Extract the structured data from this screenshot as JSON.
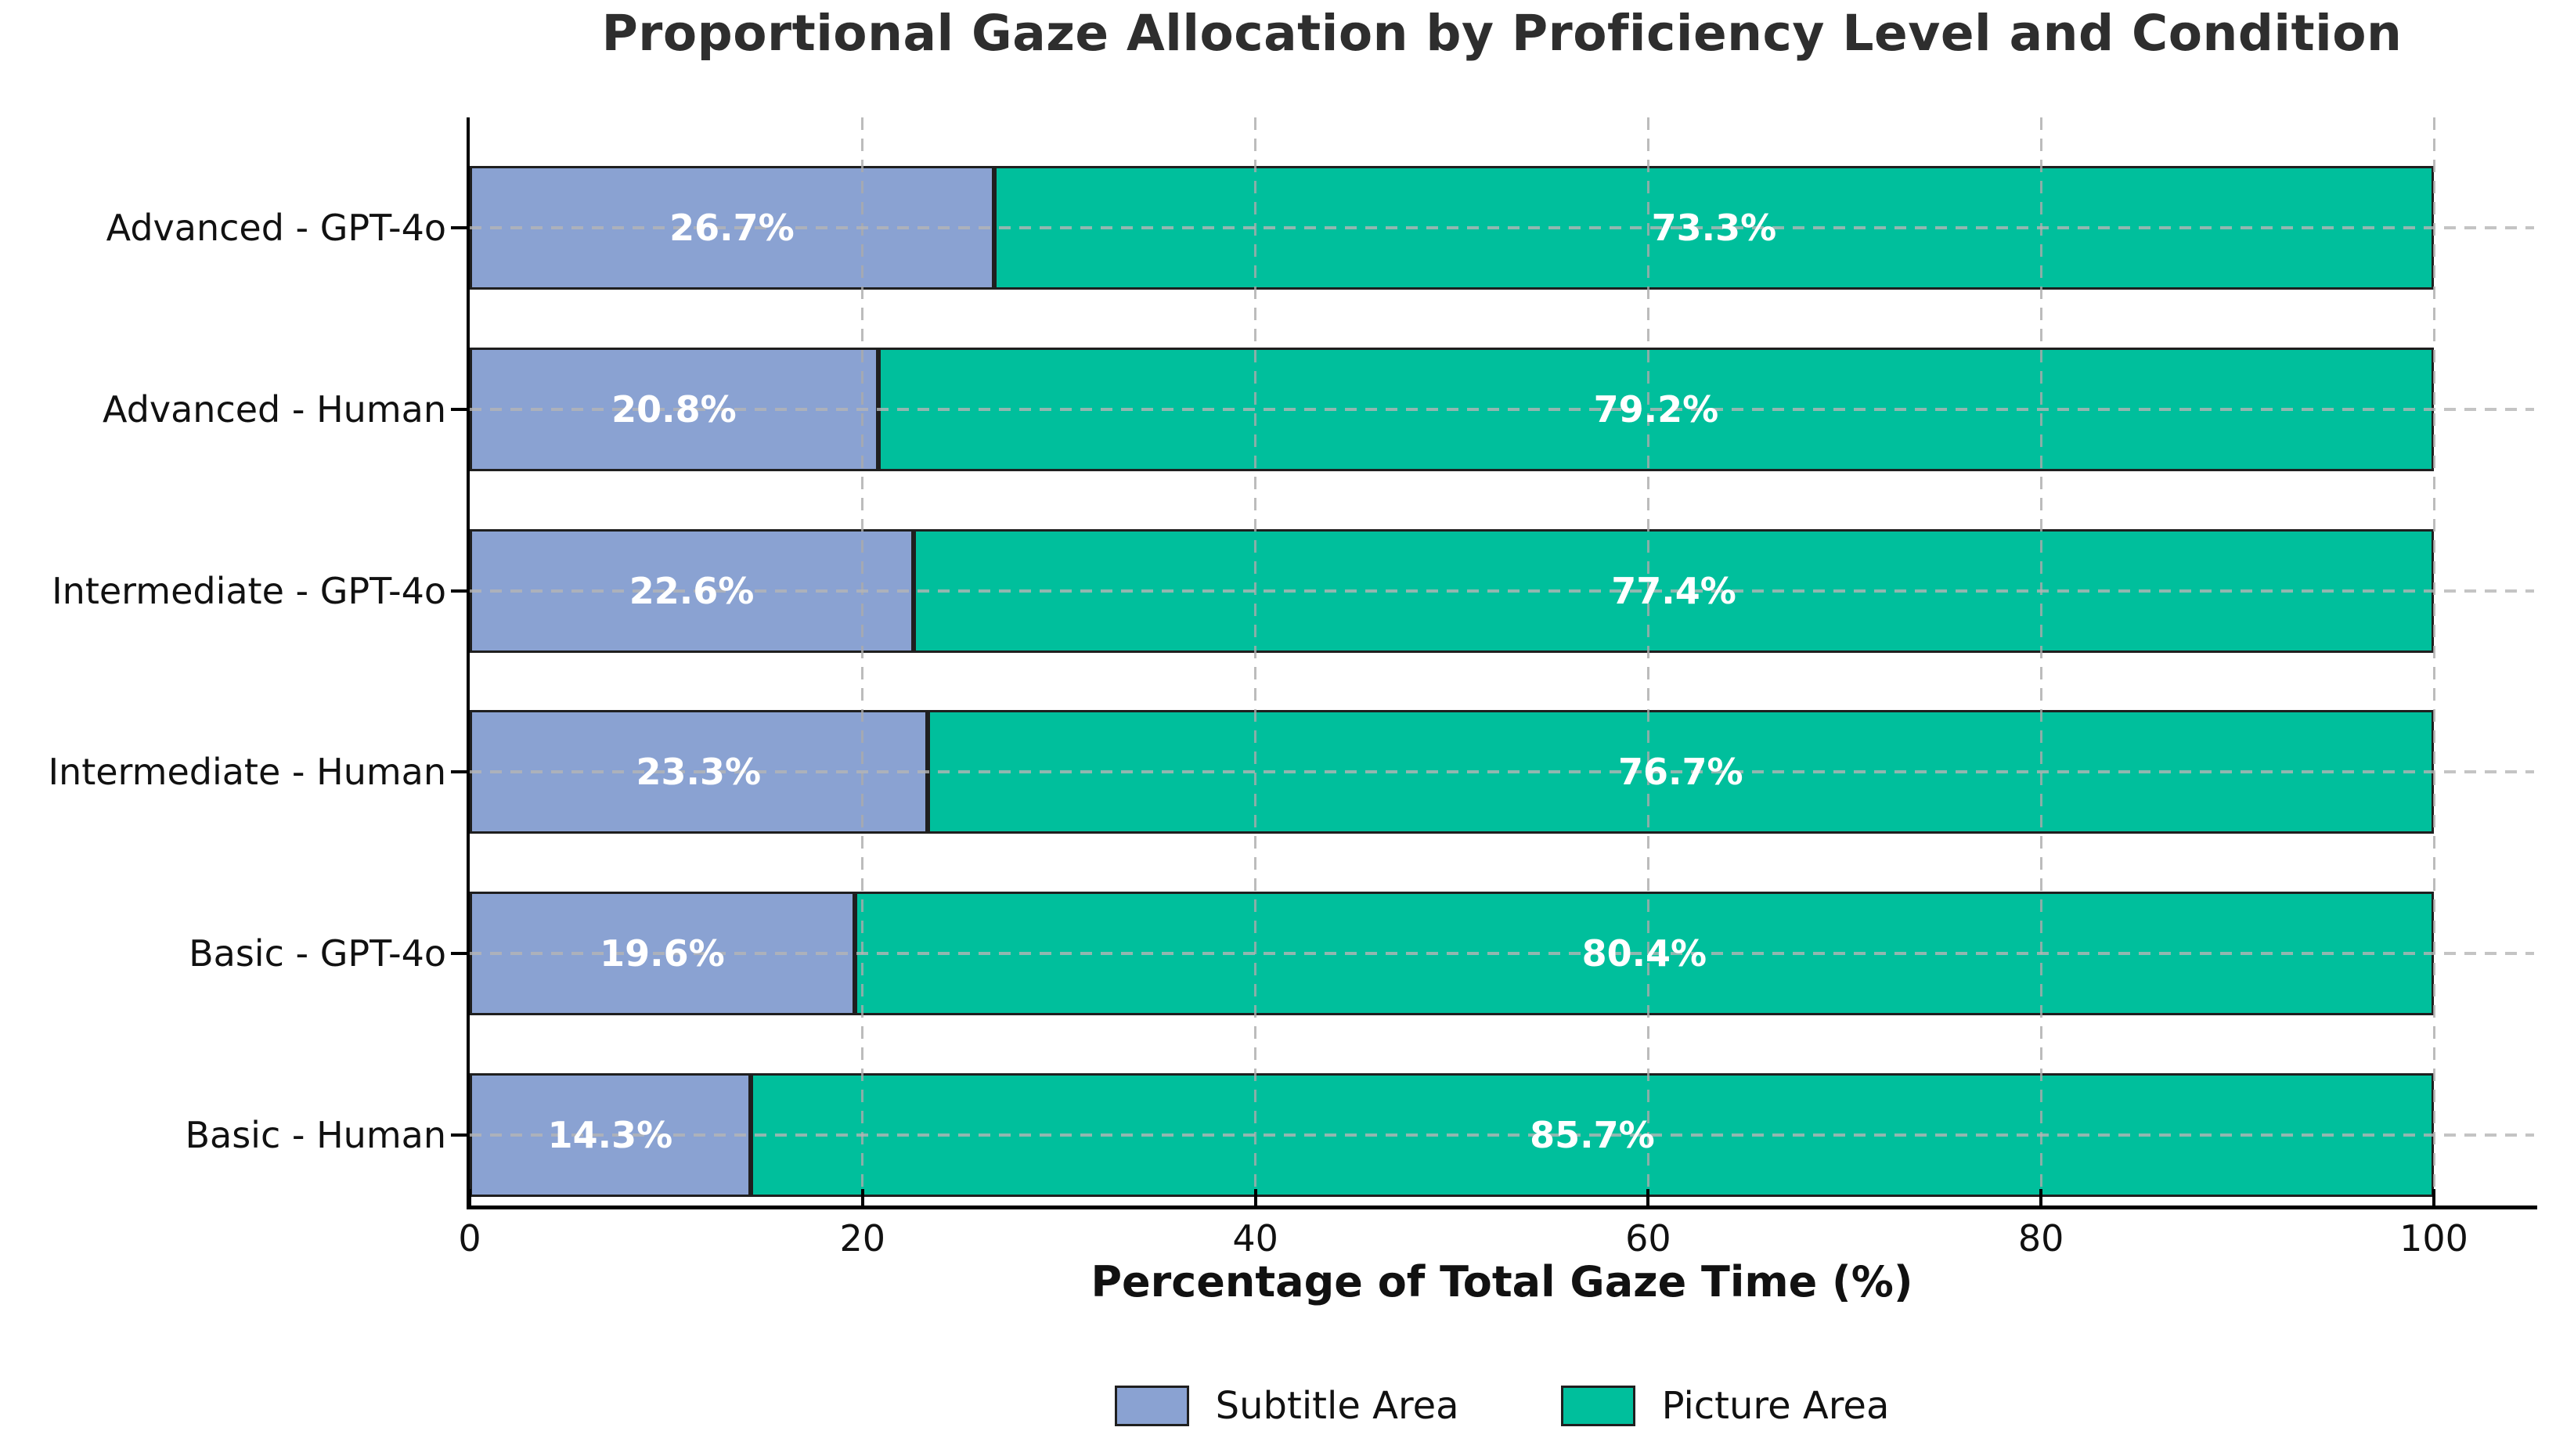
{
  "title": "Proportional Gaze Allocation by Proficiency Level and Condition",
  "chart_data": {
    "type": "bar",
    "orientation": "horizontal",
    "stacked": true,
    "title": "Proportional Gaze Allocation by Proficiency Level and Condition",
    "xlabel": "Percentage of Total Gaze Time (%)",
    "ylabel": "",
    "xlim": [
      0,
      105
    ],
    "xticks": [
      "0",
      "20",
      "40",
      "60",
      "80",
      "100"
    ],
    "xtick_values": [
      0,
      20,
      40,
      60,
      80,
      100
    ],
    "grid": "dashed, light gray, vertical at xticks and horizontal at each bar center, drawn over bars",
    "legend_position": "bottom-center",
    "categories": [
      "Advanced - GPT-4o",
      "Advanced - Human",
      "Intermediate - GPT-4o",
      "Intermediate - Human",
      "Basic - GPT-4o",
      "Basic - Human"
    ],
    "series": [
      {
        "name": "Subtitle Area",
        "color": "#8aa2d2",
        "values": [
          26.7,
          20.8,
          22.6,
          23.3,
          19.6,
          14.3
        ],
        "labels": [
          "26.7%",
          "20.8%",
          "22.6%",
          "23.3%",
          "19.6%",
          "14.3%"
        ]
      },
      {
        "name": "Picture Area",
        "color": "#00bf9c",
        "values": [
          73.3,
          79.2,
          77.4,
          76.7,
          80.4,
          85.7
        ],
        "labels": [
          "73.3%",
          "79.2%",
          "77.4%",
          "76.7%",
          "80.4%",
          "85.7%"
        ]
      }
    ]
  },
  "colors": {
    "subtitle_area": "#8aa2d2",
    "picture_area": "#00bf9c",
    "bar_edge": "#1f1f1f",
    "grid": "#b5b5b5",
    "axis": "#000000",
    "title_text": "#2e2e2e",
    "label_text": "#111111",
    "value_text": "#ffffff",
    "background": "#ffffff"
  }
}
